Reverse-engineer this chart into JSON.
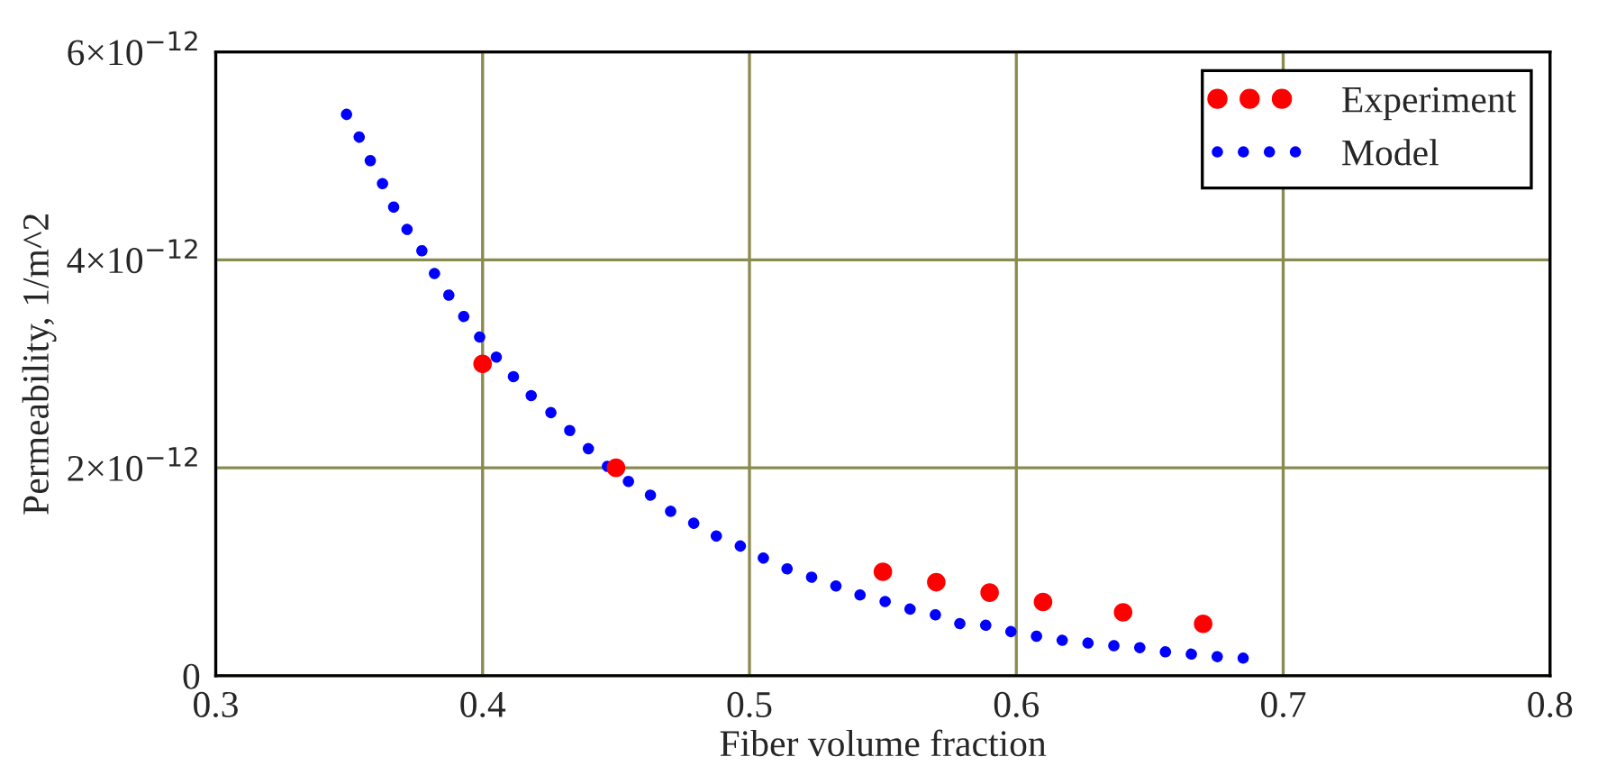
{
  "chart_data": {
    "type": "scatter",
    "xlabel": "Fiber volume fraction",
    "ylabel": "Permeability, 1/m^2",
    "xlim": [
      0.3,
      0.8
    ],
    "xticks": [
      0.3,
      0.4,
      0.5,
      0.6,
      0.7,
      0.8
    ],
    "ylim": [
      0,
      6e-12
    ],
    "yticks": [
      0,
      {
        "value": 2e-12,
        "label": "2×10$^{−12}$"
      },
      {
        "value": 4e-12,
        "label": "4×10$^{−12}$"
      },
      {
        "value": 6e-12,
        "label": "6×10$^{−12}$"
      }
    ],
    "grid": true,
    "legend": "top right",
    "series": [
      {
        "name": "Experiment",
        "marker": "circle",
        "color": "#ff0000",
        "x": [
          0.4,
          0.45,
          0.55,
          0.57,
          0.59,
          0.61,
          0.64,
          0.67
        ],
        "values": [
          3e-12,
          2e-12,
          1e-12,
          9e-13,
          8e-13,
          7.1e-13,
          6.1e-13,
          5e-13
        ]
      },
      {
        "name": "Model",
        "type": "line",
        "line_style": "dotted",
        "color": "#0000ff",
        "x": [
          0.349,
          0.354,
          0.358,
          0.363,
          0.367,
          0.372,
          0.378,
          0.383,
          0.389,
          0.395,
          0.402,
          0.41,
          0.418,
          0.427,
          0.435,
          0.443,
          0.451,
          0.461,
          0.469,
          0.477,
          0.486,
          0.495,
          0.503,
          0.511,
          0.52,
          0.529,
          0.537,
          0.545,
          0.554,
          0.563,
          0.571,
          0.579,
          0.588,
          0.597,
          0.605,
          0.613,
          0.622,
          0.631,
          0.639,
          0.647,
          0.656,
          0.665,
          0.673,
          0.681,
          0.69
        ],
        "values": [
          5.4e-12,
          5.17e-12,
          4.95e-12,
          4.71e-12,
          4.49e-12,
          4.28e-12,
          4.06e-12,
          3.82e-12,
          3.6e-12,
          3.38e-12,
          3.16e-12,
          2.92e-12,
          2.7e-12,
          2.5e-12,
          2.3e-12,
          2.1e-12,
          1.92e-12,
          1.78e-12,
          1.6e-12,
          1.5e-12,
          1.36e-12,
          1.27e-12,
          1.16e-12,
          1.06e-12,
          9.7e-13,
          9.1e-13,
          8e-13,
          7.6e-13,
          6.9e-13,
          6.2e-13,
          5.8e-13,
          5e-13,
          4.9e-13,
          4.3e-13,
          3.9e-13,
          3.6e-13,
          3.2e-13,
          3.1e-13,
          2.8e-13,
          2.7e-13,
          2.3e-13,
          2.1e-13,
          1.9e-13,
          1.7e-13,
          1.7e-13
        ]
      }
    ]
  }
}
